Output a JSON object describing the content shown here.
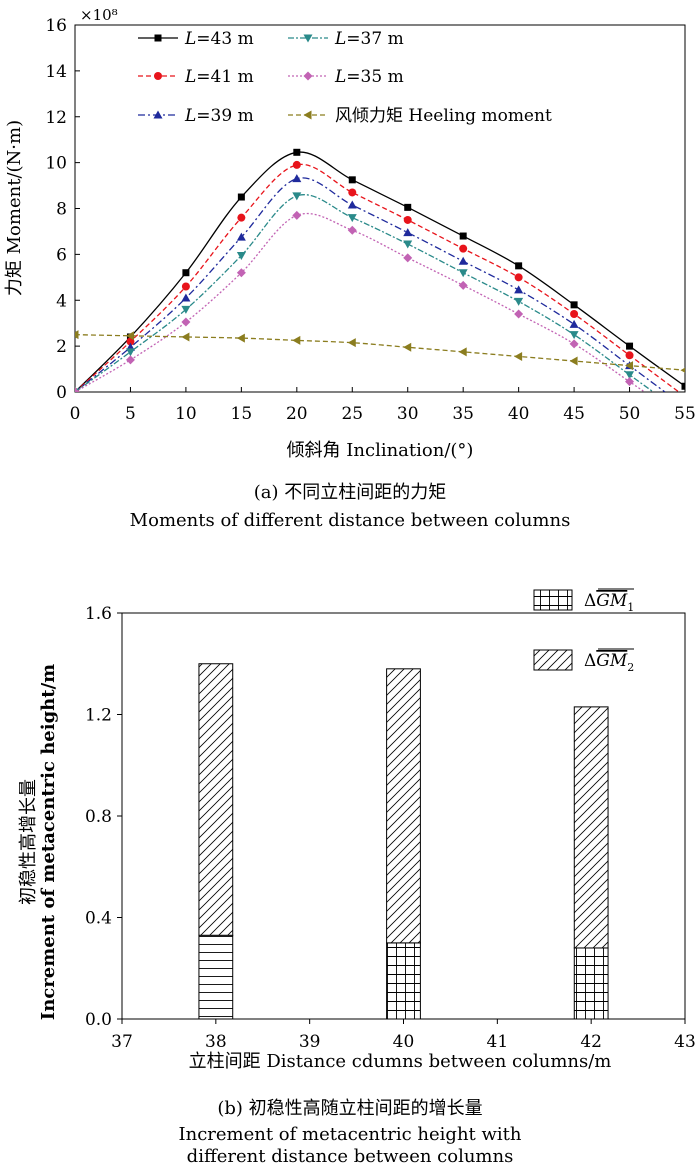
{
  "chart_data": [
    {
      "type": "line",
      "x": [
        0,
        5,
        10,
        15,
        20,
        25,
        30,
        35,
        40,
        45,
        50,
        55
      ],
      "xlabel": "倾斜角 Inclination/(°)",
      "ylabel": "力矩 Moment/(N·m)",
      "y_multiplier": "×10⁸",
      "xlim": [
        0,
        55
      ],
      "ylim": [
        0,
        16
      ],
      "x_ticks": [
        "0",
        "5",
        "10",
        "15",
        "20",
        "25",
        "30",
        "35",
        "40",
        "45",
        "50",
        "55"
      ],
      "y_ticks": [
        "0",
        "2",
        "4",
        "6",
        "8",
        "10",
        "12",
        "14",
        "16"
      ],
      "legend_position": "top",
      "caption_cn": "(a) 不同立柱间距的力矩",
      "caption_en": "Moments of different distance between columns",
      "series": [
        {
          "name": "L=43 m",
          "label_var": "L",
          "label_rest": "=43 m",
          "color": "#000000",
          "marker": "square",
          "dash": "",
          "values": [
            0,
            2.4,
            5.2,
            8.5,
            10.45,
            9.25,
            8.05,
            6.8,
            5.5,
            3.8,
            2.0,
            0.25
          ]
        },
        {
          "name": "L=41 m",
          "label_var": "L",
          "label_rest": "=41 m",
          "color": "#e8141b",
          "marker": "circle",
          "dash": "5,3",
          "values": [
            0,
            2.2,
            4.6,
            7.6,
            9.9,
            8.7,
            7.5,
            6.25,
            5.0,
            3.4,
            1.6,
            null
          ]
        },
        {
          "name": "L=39 m",
          "label_var": "L",
          "label_rest": "=39 m",
          "color": "#1f2a9c",
          "marker": "triangle-up",
          "dash": "7,3,2,3",
          "values": [
            0,
            1.95,
            4.1,
            6.75,
            9.3,
            8.15,
            6.95,
            5.7,
            4.45,
            2.95,
            1.15,
            null
          ]
        },
        {
          "name": "L=37 m",
          "label_var": "L",
          "label_rest": "=37 m",
          "color": "#2a8a8a",
          "marker": "triangle-down",
          "dash": "6,2,2,2",
          "values": [
            0,
            1.75,
            3.6,
            5.95,
            8.55,
            7.6,
            6.45,
            5.2,
            3.95,
            2.5,
            0.75,
            null
          ]
        },
        {
          "name": "L=35 m",
          "label_var": "L",
          "label_rest": "=35 m",
          "color": "#c263b4",
          "marker": "diamond",
          "dash": "2,2",
          "values": [
            0,
            1.4,
            3.05,
            5.2,
            7.7,
            7.05,
            5.85,
            4.65,
            3.4,
            2.1,
            0.45,
            null
          ]
        },
        {
          "name": "风倾力矩 Heeling moment",
          "label_var": "",
          "label_rest": "风倾力矩 Heeling moment",
          "color": "#8b7d1f",
          "marker": "triangle-left",
          "dash": "5,3",
          "values": [
            2.5,
            2.45,
            2.4,
            2.35,
            2.25,
            2.15,
            1.95,
            1.75,
            1.55,
            1.35,
            1.15,
            0.95
          ]
        }
      ]
    },
    {
      "type": "bar",
      "stacked": true,
      "x_positions": [
        38,
        40,
        42
      ],
      "xlabel": "立柱间距 Distance cdumns between columns/m",
      "ylabel_cn": "初稳性高增长量",
      "ylabel_en": "Increment of metacentric height/m",
      "xlim": [
        37,
        43
      ],
      "ylim": [
        0,
        1.6
      ],
      "x_ticks": [
        "37",
        "38",
        "39",
        "40",
        "41",
        "42",
        "43"
      ],
      "y_ticks": [
        "0.0",
        "0.4",
        "0.8",
        "1.2",
        "1.6"
      ],
      "legend_position": "top-right",
      "caption_cn": "(b) 初稳性高随立柱间距的增长量",
      "caption_en_line1": "Increment of metacentric height with",
      "caption_en_line2": "different distance between columns",
      "series": [
        {
          "name": "ΔGM1",
          "label_main": "Δ",
          "label_over": "GM",
          "label_sub": "1",
          "pattern": "grid",
          "values": [
            0.33,
            0.3,
            0.28
          ]
        },
        {
          "name": "ΔGM2",
          "label_main": "Δ",
          "label_over": "GM",
          "label_sub": "2",
          "pattern": "diagonal",
          "values": [
            1.07,
            1.08,
            0.95
          ]
        }
      ]
    }
  ]
}
